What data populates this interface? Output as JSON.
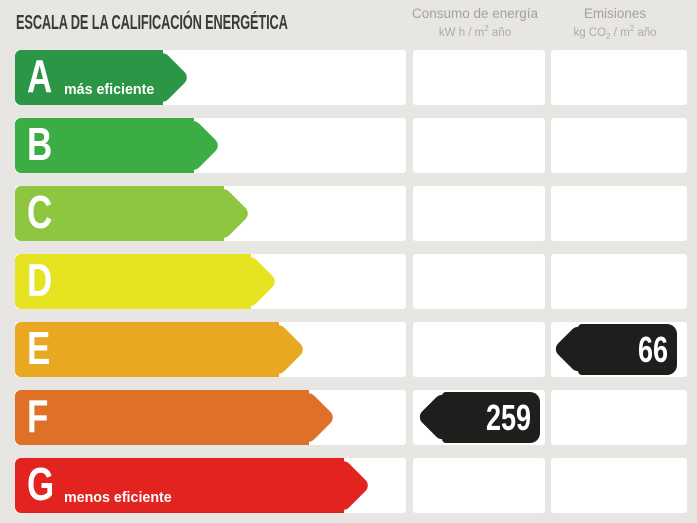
{
  "title": "ESCALA DE LA CALIFICACIÓN ENERGÉTICA",
  "columns": {
    "consumo": {
      "title": "Consumo de energía",
      "unit_pre": "kW h / m",
      "unit_sup": "2",
      "unit_post": " año"
    },
    "emisiones": {
      "title": "Emisiones",
      "unit_pre": "kg CO",
      "unit_sub": "2",
      "unit_mid": " / m",
      "unit_sup": "2",
      "unit_post": " año"
    }
  },
  "scale": {
    "rows": [
      {
        "letter": "A",
        "label": "más eficiente",
        "color": "#2a9646"
      },
      {
        "letter": "B",
        "label": "",
        "color": "#3cad44"
      },
      {
        "letter": "C",
        "label": "",
        "color": "#8ec73f"
      },
      {
        "letter": "D",
        "label": "",
        "color": "#e6e321"
      },
      {
        "letter": "E",
        "label": "",
        "color": "#e9a821"
      },
      {
        "letter": "F",
        "label": "",
        "color": "#df7028"
      },
      {
        "letter": "G",
        "label": "menos eficiente",
        "color": "#e2231f"
      }
    ]
  },
  "values": {
    "consumo": {
      "row": "F",
      "value": "259"
    },
    "emisiones": {
      "row": "E",
      "value": "66"
    },
    "badge_color": "#1e1e1c",
    "badge_text_color": "#ffffff"
  },
  "colors": {
    "background": "#e7e6e3",
    "row_background": "#ffffff",
    "title_text": "#3a3a38",
    "header_text": "#a5a29b"
  },
  "chart_data": {
    "type": "bar",
    "title": "ESCALA DE LA CALIFICACIÓN ENERGÉTICA",
    "categories": [
      "A",
      "B",
      "C",
      "D",
      "E",
      "F",
      "G"
    ],
    "category_labels": [
      "más eficiente",
      "",
      "",
      "",
      "",
      "",
      "menos eficiente"
    ],
    "bar_colors": [
      "#2a9646",
      "#3cad44",
      "#8ec73f",
      "#e6e321",
      "#e9a821",
      "#df7028",
      "#e2231f"
    ],
    "bar_relative_lengths": [
      190,
      221,
      251,
      278,
      306,
      336,
      371
    ],
    "series": [
      {
        "name": "Consumo de energía (kW h / m² año)",
        "values": [
          null,
          null,
          null,
          null,
          null,
          259,
          null
        ]
      },
      {
        "name": "Emisiones (kg CO₂ / m² año)",
        "values": [
          null,
          null,
          null,
          null,
          66,
          null,
          null
        ]
      }
    ],
    "legend_position": "top",
    "grid": false
  }
}
